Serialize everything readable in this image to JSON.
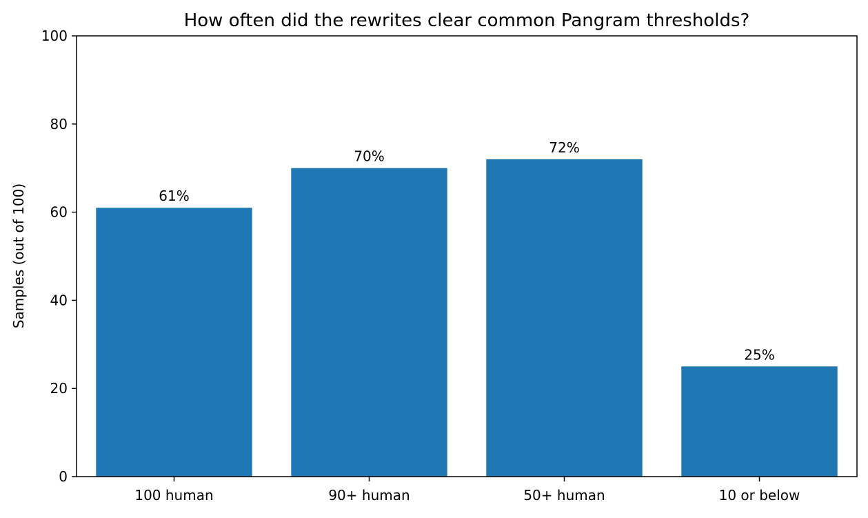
{
  "chart_data": {
    "type": "bar",
    "title": "How often did the rewrites clear common Pangram thresholds?",
    "xlabel": "",
    "ylabel": "Samples (out of 100)",
    "categories": [
      "100 human",
      "90+ human",
      "50+ human",
      "10 or below"
    ],
    "values": [
      61,
      70,
      72,
      25
    ],
    "data_labels": [
      "61%",
      "70%",
      "72%",
      "25%"
    ],
    "ylim": [
      0,
      100
    ],
    "yticks": [
      0,
      20,
      40,
      60,
      80,
      100
    ],
    "ytick_labels": [
      "0",
      "20",
      "40",
      "60",
      "80",
      "100"
    ],
    "grid": false,
    "legend": "none",
    "bar_color": "#1f77b4"
  }
}
